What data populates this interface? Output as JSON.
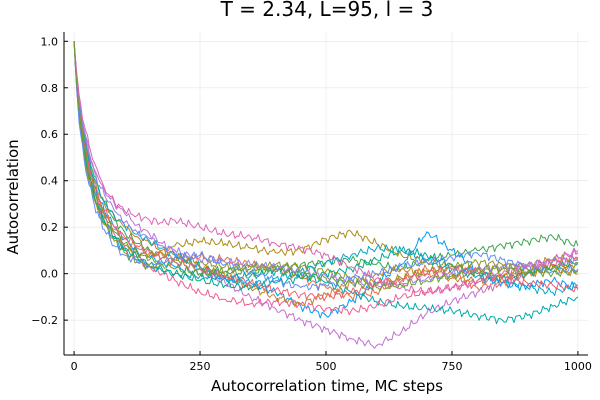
{
  "chart_data": {
    "type": "line",
    "title": "T = 2.34, L=95, l = 3",
    "xlabel": "Autocorrelation time, MC steps",
    "ylabel": "Autocorrelation",
    "xlim": [
      -20,
      1020
    ],
    "ylim": [
      -0.35,
      1.04
    ],
    "xticks": [
      {
        "value": 0,
        "label": "0"
      },
      {
        "value": 250,
        "label": "250"
      },
      {
        "value": 500,
        "label": "500"
      },
      {
        "value": 750,
        "label": "750"
      },
      {
        "value": 1000,
        "label": "1000"
      }
    ],
    "yticks": [
      {
        "value": -0.2,
        "label": "−0.2"
      },
      {
        "value": 0.0,
        "label": "0.0"
      },
      {
        "value": 0.2,
        "label": "0.2"
      },
      {
        "value": 0.4,
        "label": "0.4"
      },
      {
        "value": 0.6,
        "label": "0.6"
      },
      {
        "value": 0.8,
        "label": "0.8"
      },
      {
        "value": 1.0,
        "label": "1.0"
      }
    ],
    "grid": true,
    "legend": "none",
    "x": [
      0,
      5,
      10,
      20,
      30,
      40,
      50,
      60,
      80,
      100,
      125,
      150,
      175,
      200,
      250,
      300,
      350,
      400,
      450,
      500,
      550,
      600,
      650,
      700,
      750,
      800,
      850,
      900,
      950,
      1000
    ],
    "series": [
      {
        "color": "#009AFA",
        "values": [
          1.0,
          0.84,
          0.72,
          0.56,
          0.46,
          0.38,
          0.32,
          0.27,
          0.2,
          0.15,
          0.1,
          0.07,
          0.05,
          0.03,
          0.0,
          -0.02,
          -0.04,
          -0.08,
          -0.14,
          -0.18,
          -0.12,
          -0.04,
          0.04,
          0.18,
          0.1,
          0.02,
          -0.04,
          -0.05,
          -0.03,
          -0.06
        ]
      },
      {
        "color": "#E36F47",
        "values": [
          1.0,
          0.82,
          0.7,
          0.55,
          0.45,
          0.37,
          0.31,
          0.26,
          0.19,
          0.15,
          0.11,
          0.09,
          0.08,
          0.07,
          0.07,
          0.06,
          0.04,
          0.02,
          -0.02,
          -0.06,
          -0.1,
          -0.08,
          -0.02,
          0.02,
          0.0,
          -0.06,
          -0.04,
          0.0,
          0.04,
          0.02
        ]
      },
      {
        "color": "#3EA44E",
        "values": [
          1.0,
          0.85,
          0.74,
          0.6,
          0.5,
          0.42,
          0.36,
          0.31,
          0.23,
          0.18,
          0.13,
          0.1,
          0.07,
          0.05,
          0.02,
          0.01,
          0.0,
          0.02,
          0.04,
          0.05,
          0.06,
          0.04,
          0.02,
          0.06,
          0.08,
          0.1,
          0.12,
          0.14,
          0.16,
          0.12
        ]
      },
      {
        "color": "#C271D2",
        "values": [
          1.0,
          0.86,
          0.76,
          0.62,
          0.52,
          0.45,
          0.4,
          0.36,
          0.3,
          0.26,
          0.21,
          0.17,
          0.13,
          0.09,
          0.02,
          -0.04,
          -0.1,
          -0.15,
          -0.2,
          -0.24,
          -0.28,
          -0.31,
          -0.25,
          -0.17,
          -0.12,
          -0.08,
          -0.04,
          0.0,
          0.06,
          0.1
        ]
      },
      {
        "color": "#AC8D18",
        "values": [
          1.0,
          0.8,
          0.66,
          0.5,
          0.4,
          0.33,
          0.27,
          0.22,
          0.16,
          0.12,
          0.09,
          0.08,
          0.09,
          0.12,
          0.14,
          0.13,
          0.11,
          0.09,
          0.1,
          0.15,
          0.18,
          0.13,
          0.08,
          0.05,
          0.03,
          0.02,
          0.03,
          0.04,
          0.06,
          0.07
        ]
      },
      {
        "color": "#00A9AD",
        "values": [
          1.0,
          0.82,
          0.68,
          0.52,
          0.41,
          0.33,
          0.27,
          0.22,
          0.15,
          0.1,
          0.06,
          0.03,
          0.01,
          0.0,
          -0.01,
          -0.02,
          -0.01,
          0.01,
          0.0,
          -0.04,
          -0.08,
          -0.12,
          -0.14,
          -0.15,
          -0.16,
          -0.18,
          -0.2,
          -0.18,
          -0.14,
          -0.1
        ]
      },
      {
        "color": "#ED5E93",
        "values": [
          1.0,
          0.83,
          0.7,
          0.54,
          0.43,
          0.35,
          0.29,
          0.24,
          0.17,
          0.12,
          0.07,
          0.03,
          0.0,
          -0.03,
          -0.08,
          -0.11,
          -0.13,
          -0.12,
          -0.13,
          -0.15,
          -0.16,
          -0.14,
          -0.1,
          -0.08,
          -0.06,
          -0.04,
          -0.01,
          0.02,
          0.04,
          0.06
        ]
      },
      {
        "color": "#C68225",
        "values": [
          1.0,
          0.84,
          0.72,
          0.57,
          0.47,
          0.4,
          0.34,
          0.3,
          0.24,
          0.2,
          0.16,
          0.13,
          0.1,
          0.08,
          0.03,
          -0.01,
          -0.06,
          -0.1,
          -0.13,
          -0.09,
          -0.04,
          0.0,
          0.02,
          0.0,
          -0.02,
          -0.03,
          -0.01,
          0.0,
          0.02,
          0.0
        ]
      },
      {
        "color": "#00A98D",
        "values": [
          1.0,
          0.82,
          0.69,
          0.53,
          0.42,
          0.34,
          0.28,
          0.23,
          0.16,
          0.11,
          0.07,
          0.04,
          0.02,
          0.0,
          -0.03,
          -0.05,
          -0.06,
          -0.04,
          -0.02,
          0.0,
          0.02,
          0.06,
          0.1,
          0.08,
          0.04,
          0.0,
          -0.02,
          0.0,
          0.03,
          0.05
        ]
      },
      {
        "color": "#8E971D",
        "values": [
          1.0,
          0.81,
          0.67,
          0.51,
          0.4,
          0.32,
          0.26,
          0.21,
          0.14,
          0.09,
          0.05,
          0.03,
          0.04,
          0.06,
          0.05,
          0.03,
          0.02,
          0.04,
          0.03,
          0.01,
          -0.02,
          -0.04,
          -0.02,
          0.01,
          0.03,
          0.05,
          0.04,
          0.02,
          0.03,
          0.04
        ]
      },
      {
        "color": "#00A8CB",
        "values": [
          1.0,
          0.85,
          0.73,
          0.58,
          0.48,
          0.41,
          0.35,
          0.31,
          0.25,
          0.21,
          0.17,
          0.14,
          0.11,
          0.08,
          0.03,
          -0.02,
          -0.05,
          -0.02,
          0.01,
          0.05,
          0.08,
          0.11,
          0.1,
          0.06,
          0.02,
          -0.01,
          -0.04,
          -0.06,
          -0.08,
          -0.05
        ]
      },
      {
        "color": "#9B7FE9",
        "values": [
          1.0,
          0.86,
          0.75,
          0.61,
          0.51,
          0.44,
          0.38,
          0.34,
          0.27,
          0.22,
          0.18,
          0.15,
          0.12,
          0.1,
          0.06,
          0.05,
          0.04,
          0.03,
          0.01,
          -0.01,
          -0.03,
          -0.05,
          -0.04,
          -0.02,
          0.0,
          0.02,
          0.03,
          0.04,
          0.05,
          0.06
        ]
      },
      {
        "color": "#618DF6",
        "values": [
          1.0,
          0.8,
          0.65,
          0.49,
          0.38,
          0.3,
          0.24,
          0.19,
          0.12,
          0.08,
          0.05,
          0.04,
          0.05,
          0.07,
          0.08,
          0.04,
          0.01,
          -0.03,
          -0.06,
          -0.05,
          -0.02,
          0.0,
          0.03,
          0.05,
          0.07,
          0.09,
          0.06,
          0.03,
          0.01,
          0.02
        ]
      },
      {
        "color": "#F05F73",
        "values": [
          1.0,
          0.83,
          0.71,
          0.56,
          0.46,
          0.38,
          0.32,
          0.27,
          0.2,
          0.16,
          0.12,
          0.09,
          0.07,
          0.05,
          0.02,
          -0.01,
          -0.04,
          -0.07,
          -0.09,
          -0.1,
          -0.08,
          -0.05,
          -0.03,
          0.0,
          0.02,
          0.01,
          -0.02,
          -0.04,
          -0.05,
          -0.07
        ]
      },
      {
        "color": "#DD64B5",
        "values": [
          1.0,
          0.87,
          0.77,
          0.64,
          0.55,
          0.48,
          0.42,
          0.37,
          0.31,
          0.27,
          0.25,
          0.23,
          0.22,
          0.23,
          0.2,
          0.17,
          0.16,
          0.13,
          0.11,
          0.08,
          0.03,
          -0.02,
          -0.06,
          -0.08,
          -0.06,
          -0.03,
          0.0,
          0.03,
          0.06,
          0.09
        ]
      },
      {
        "color": "#6B9E32",
        "values": [
          1.0,
          0.82,
          0.7,
          0.54,
          0.44,
          0.36,
          0.3,
          0.25,
          0.18,
          0.13,
          0.09,
          0.06,
          0.04,
          0.02,
          0.0,
          0.01,
          0.03,
          0.02,
          0.0,
          -0.02,
          -0.04,
          -0.06,
          -0.05,
          -0.03,
          -0.01,
          0.01,
          0.02,
          0.01,
          0.0,
          0.01
        ]
      }
    ]
  }
}
